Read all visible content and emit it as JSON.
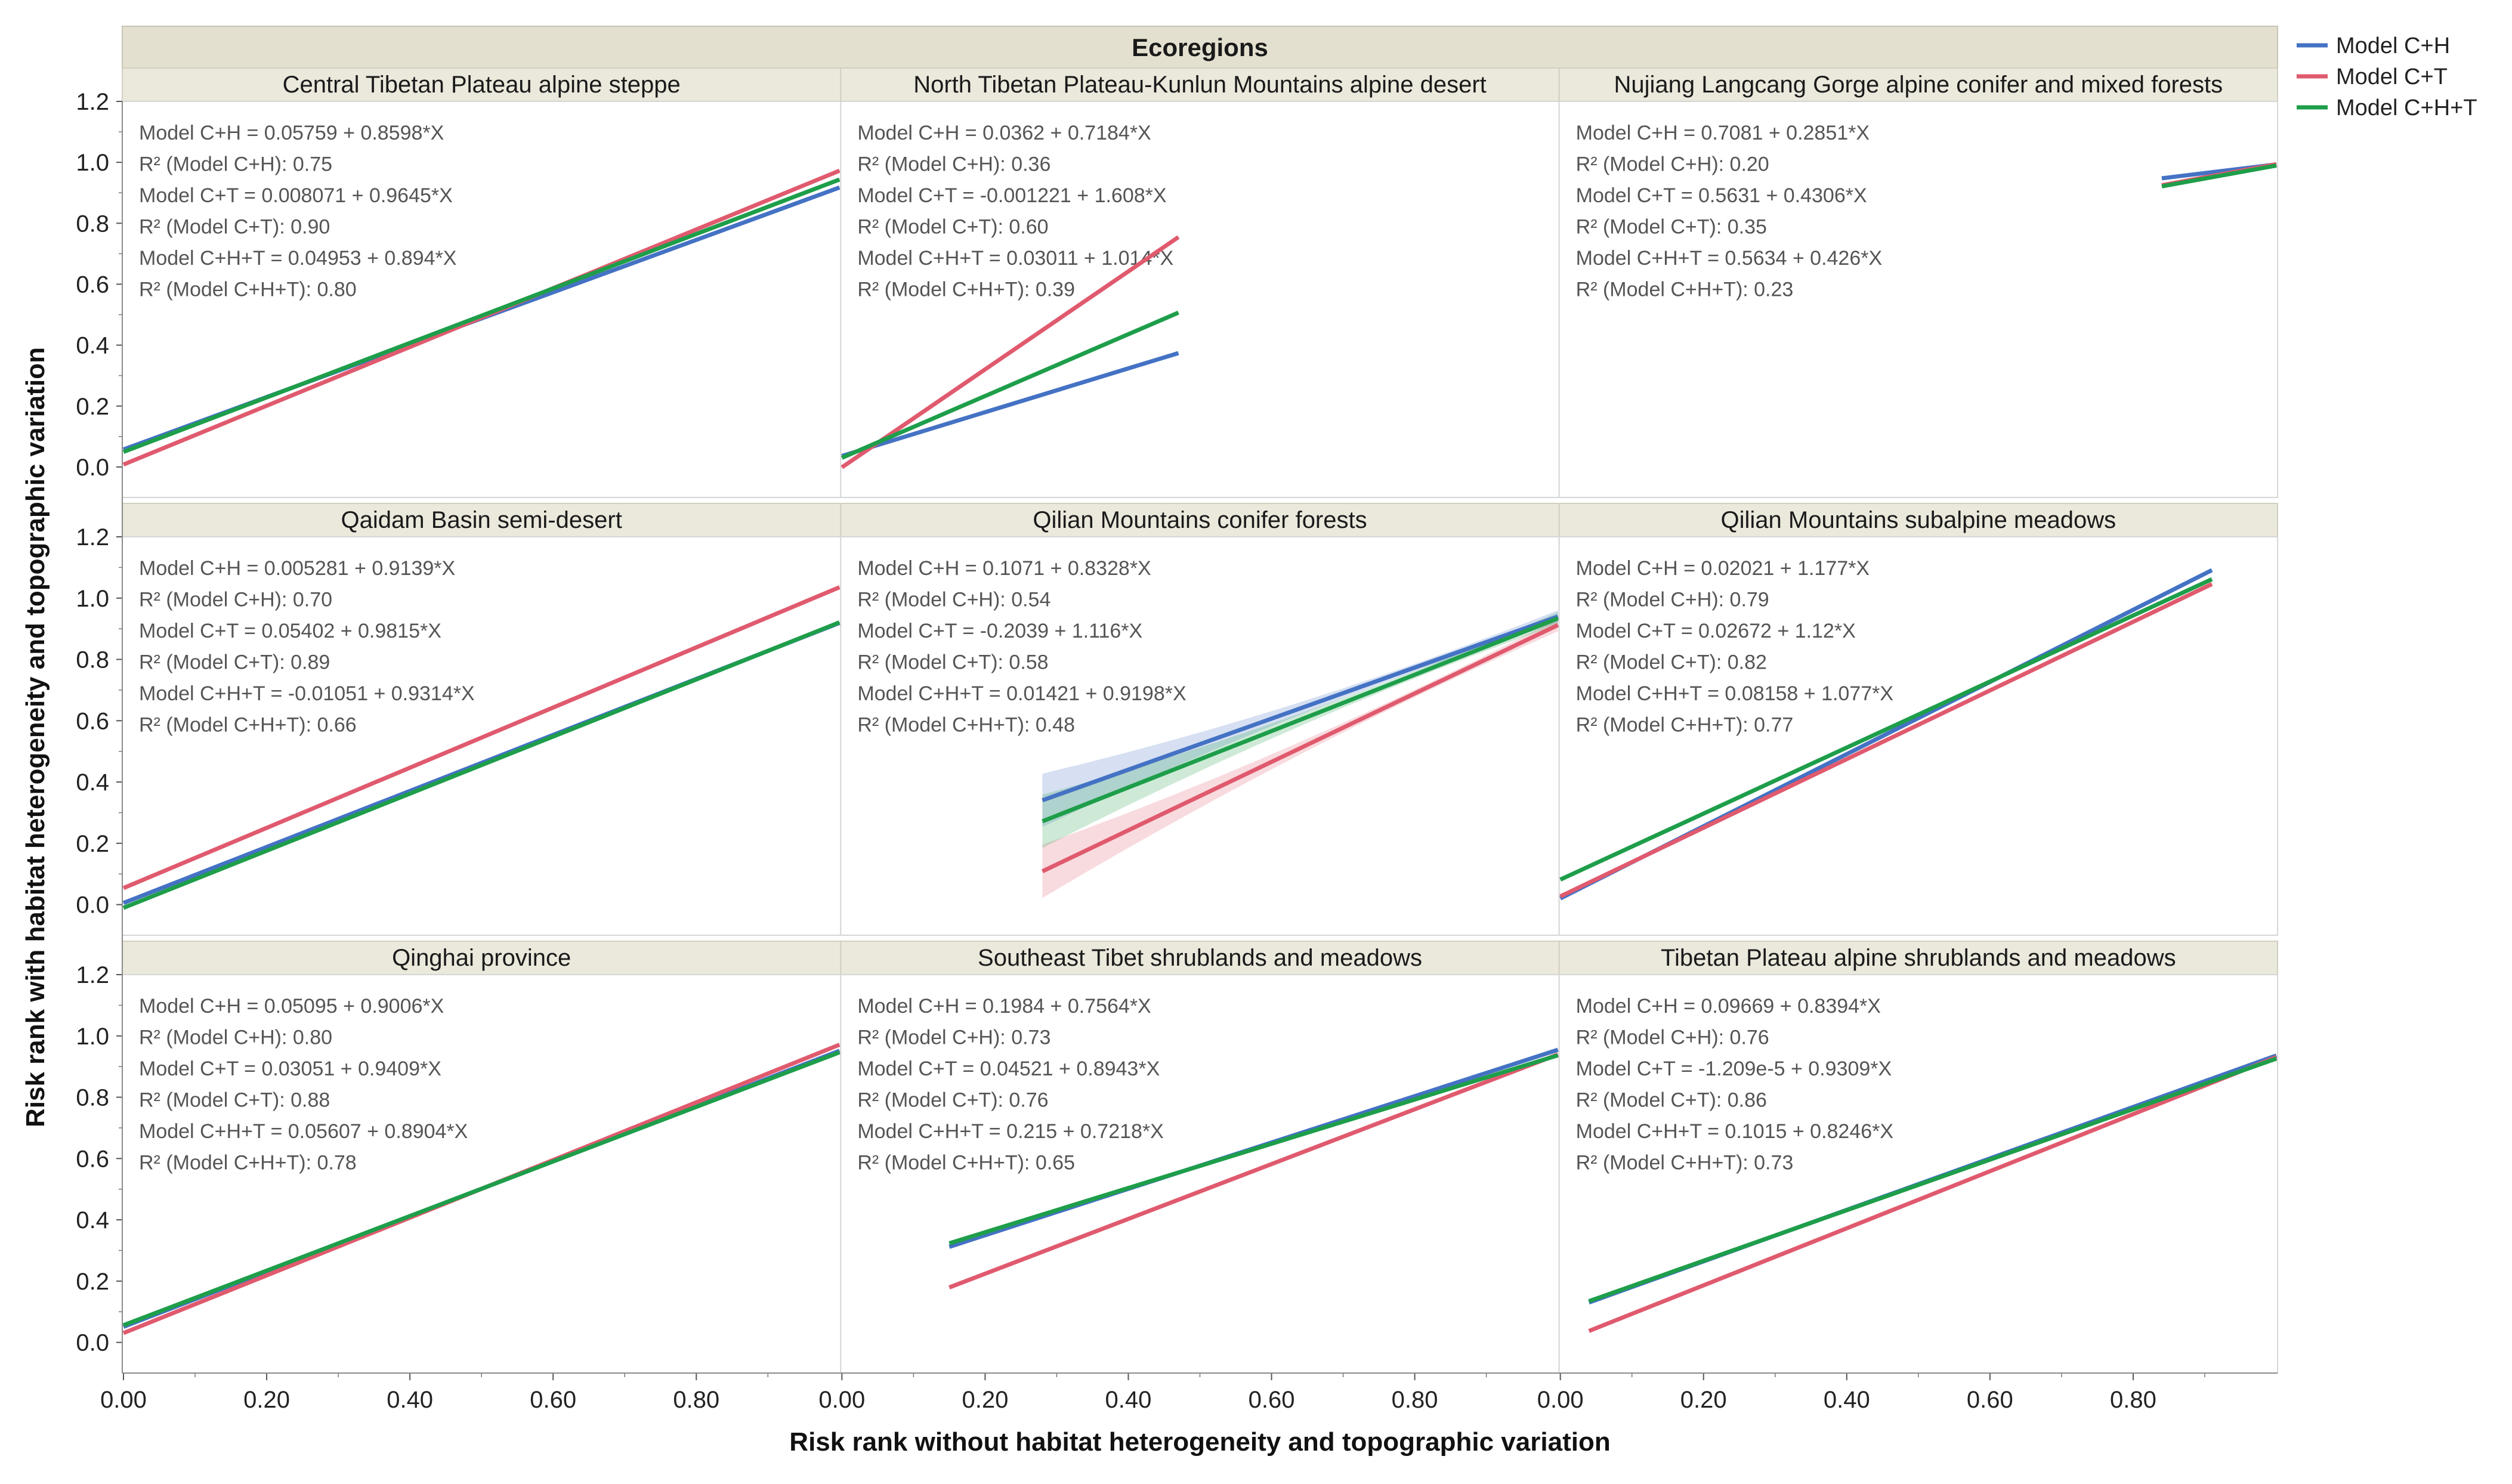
{
  "chart_data": {
    "type": "line",
    "header": "Ecoregions",
    "xlabel": "Risk rank without habitat heterogeneity and topographic variation",
    "ylabel": "Risk rank with habitat heterogeneity and topographic variation",
    "xlim": [
      0,
      1
    ],
    "ylim": [
      -0.1,
      1.2
    ],
    "xticks": [
      0.0,
      0.2,
      0.4,
      0.6,
      0.8
    ],
    "xtick_labels": [
      "0.00",
      "0.20",
      "0.40",
      "0.60",
      "0.80"
    ],
    "yticks": [
      0.0,
      0.2,
      0.4,
      0.6,
      0.8,
      1.0,
      1.2
    ],
    "ytick_labels": [
      "0.0",
      "0.2",
      "0.4",
      "0.6",
      "0.8",
      "1.0",
      "1.2"
    ],
    "legend_position": "top-right",
    "series": [
      {
        "name": "Model C+H",
        "key": "ch",
        "color": "#4472C4"
      },
      {
        "name": "Model C+T",
        "key": "ct",
        "color": "#E05A6E"
      },
      {
        "name": "Model C+H+T",
        "key": "cht",
        "color": "#1E9E4A"
      }
    ],
    "facets": [
      {
        "title": "Central Tibetan Plateau alpine steppe",
        "x_range": [
          0,
          1
        ],
        "fits": {
          "ch": [
            0.05759,
            0.8598
          ],
          "ct": [
            0.008071,
            0.9645
          ],
          "cht": [
            0.04953,
            0.894
          ]
        },
        "equations": [
          "Model C+H = 0.05759 + 0.8598*X",
          "R² (Model C+H): 0.75",
          "Model C+T = 0.008071 + 0.9645*X",
          "R² (Model C+T): 0.90",
          "Model C+H+T = 0.04953 + 0.894*X",
          "R² (Model C+H+T): 0.80"
        ]
      },
      {
        "title": "North Tibetan Plateau-Kunlun Mountains alpine desert",
        "x_range": [
          0,
          0.47
        ],
        "fits": {
          "ch": [
            0.0362,
            0.7184
          ],
          "ct": [
            -0.001221,
            1.608
          ],
          "cht": [
            0.03011,
            1.014
          ]
        },
        "equations": [
          "Model C+H = 0.0362 + 0.7184*X",
          "R² (Model C+H): 0.36",
          "Model C+T = -0.001221 + 1.608*X",
          "R² (Model C+T): 0.60",
          "Model C+H+T = 0.03011 + 1.014*X",
          "R² (Model C+H+T): 0.39"
        ]
      },
      {
        "title": "Nujiang Langcang Gorge alpine conifer and mixed forests",
        "x_range": [
          0.84,
          1
        ],
        "fits": {
          "ch": [
            0.7081,
            0.2851
          ],
          "ct": [
            0.5631,
            0.4306
          ],
          "cht": [
            0.5634,
            0.426
          ]
        },
        "equations": [
          "Model C+H = 0.7081 + 0.2851*X",
          "R² (Model C+H): 0.20",
          "Model C+T = 0.5631 + 0.4306*X",
          "R² (Model C+T): 0.35",
          "Model C+H+T = 0.5634 + 0.426*X",
          "R² (Model C+H+T): 0.23"
        ]
      },
      {
        "title": "Qaidam Basin semi-desert",
        "x_range": [
          0,
          1
        ],
        "fits": {
          "ch": [
            0.005281,
            0.9139
          ],
          "ct": [
            0.05402,
            0.9815
          ],
          "cht": [
            -0.01051,
            0.9314
          ]
        },
        "equations": [
          "Model C+H = 0.005281 + 0.9139*X",
          "R² (Model C+H): 0.70",
          "Model C+T = 0.05402 + 0.9815*X",
          "R² (Model C+T): 0.89",
          "Model C+H+T = -0.01051 + 0.9314*X",
          "R² (Model C+H+T): 0.66"
        ]
      },
      {
        "title": "Qilian Mountains conifer forests",
        "x_range": [
          0.28,
          1
        ],
        "confidence_band": true,
        "fits": {
          "ch": [
            0.1071,
            0.8328
          ],
          "ct": [
            -0.2039,
            1.116
          ],
          "cht": [
            0.01421,
            0.9198
          ]
        },
        "equations": [
          "Model C+H = 0.1071 + 0.8328*X",
          "R² (Model C+H): 0.54",
          "Model C+T = -0.2039 + 1.116*X",
          "R² (Model C+T): 0.58",
          "Model C+H+T = 0.01421 + 0.9198*X",
          "R² (Model C+H+T): 0.48"
        ]
      },
      {
        "title": "Qilian Mountains subalpine meadows",
        "x_range": [
          0,
          0.91
        ],
        "fits": {
          "ch": [
            0.02021,
            1.177
          ],
          "ct": [
            0.02672,
            1.12
          ],
          "cht": [
            0.08158,
            1.077
          ]
        },
        "equations": [
          "Model C+H = 0.02021 + 1.177*X",
          "R² (Model C+H): 0.79",
          "Model C+T = 0.02672 + 1.12*X",
          "R² (Model C+T): 0.82",
          "Model C+H+T = 0.08158 + 1.077*X",
          "R² (Model C+H+T): 0.77"
        ]
      },
      {
        "title": "Qinghai province",
        "x_range": [
          0,
          1
        ],
        "fits": {
          "ch": [
            0.05095,
            0.9006
          ],
          "ct": [
            0.03051,
            0.9409
          ],
          "cht": [
            0.05607,
            0.8904
          ]
        },
        "equations": [
          "Model C+H = 0.05095 + 0.9006*X",
          "R² (Model C+H): 0.80",
          "Model C+T = 0.03051 + 0.9409*X",
          "R² (Model C+T): 0.88",
          "Model C+H+T = 0.05607 + 0.8904*X",
          "R² (Model C+H+T): 0.78"
        ]
      },
      {
        "title": "Southeast Tibet shrublands and meadows",
        "x_range": [
          0.15,
          1
        ],
        "fits": {
          "ch": [
            0.1984,
            0.7564
          ],
          "ct": [
            0.04521,
            0.8943
          ],
          "cht": [
            0.215,
            0.7218
          ]
        },
        "equations": [
          "Model C+H = 0.1984 + 0.7564*X",
          "R² (Model C+H): 0.73",
          "Model C+T = 0.04521 + 0.8943*X",
          "R² (Model C+T): 0.76",
          "Model C+H+T = 0.215 + 0.7218*X",
          "R² (Model C+H+T): 0.65"
        ]
      },
      {
        "title": "Tibetan Plateau alpine shrublands and meadows",
        "x_range": [
          0.04,
          1
        ],
        "fits": {
          "ch": [
            0.09669,
            0.8394
          ],
          "ct": [
            -1.209e-05,
            0.9309
          ],
          "cht": [
            0.1015,
            0.8246
          ]
        },
        "equations": [
          "Model C+H = 0.09669 + 0.8394*X",
          "R² (Model C+H): 0.76",
          "Model C+T = -1.209e-5 + 0.9309*X",
          "R² (Model C+T): 0.86",
          "Model C+H+T = 0.1015 + 0.8246*X",
          "R² (Model C+H+T): 0.73"
        ]
      }
    ]
  }
}
